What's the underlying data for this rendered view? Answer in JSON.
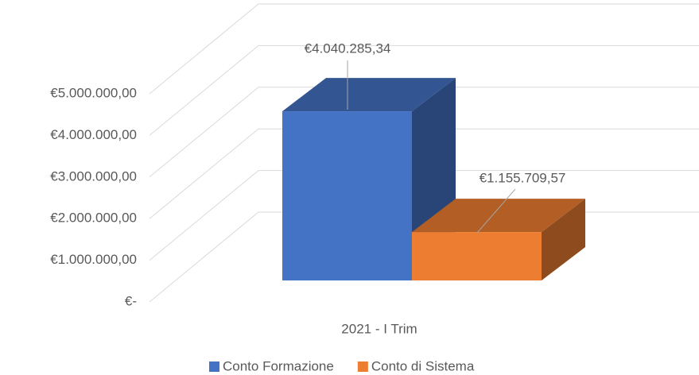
{
  "chart_data": {
    "type": "bar3d",
    "categories": [
      "2021 - I Trim"
    ],
    "series": [
      {
        "name": "Conto Formazione",
        "color": "#4472c4",
        "values": [
          4040285.34
        ],
        "value_labels": [
          "€4.040.285,34"
        ]
      },
      {
        "name": "Conto di Sistema",
        "color": "#ed7d31",
        "values": [
          1155709.57
        ],
        "value_labels": [
          "€1.155.709,57"
        ]
      }
    ],
    "ylim": [
      0,
      5000000
    ],
    "yticks": [
      {
        "value": 0,
        "label": "€-"
      },
      {
        "value": 1000000,
        "label": "€1.000.000,00"
      },
      {
        "value": 2000000,
        "label": "€2.000.000,00"
      },
      {
        "value": 3000000,
        "label": "€3.000.000,00"
      },
      {
        "value": 4000000,
        "label": "€4.000.000,00"
      },
      {
        "value": 5000000,
        "label": "€5.000.000,00"
      }
    ],
    "grid": true,
    "legend": "bottom"
  }
}
